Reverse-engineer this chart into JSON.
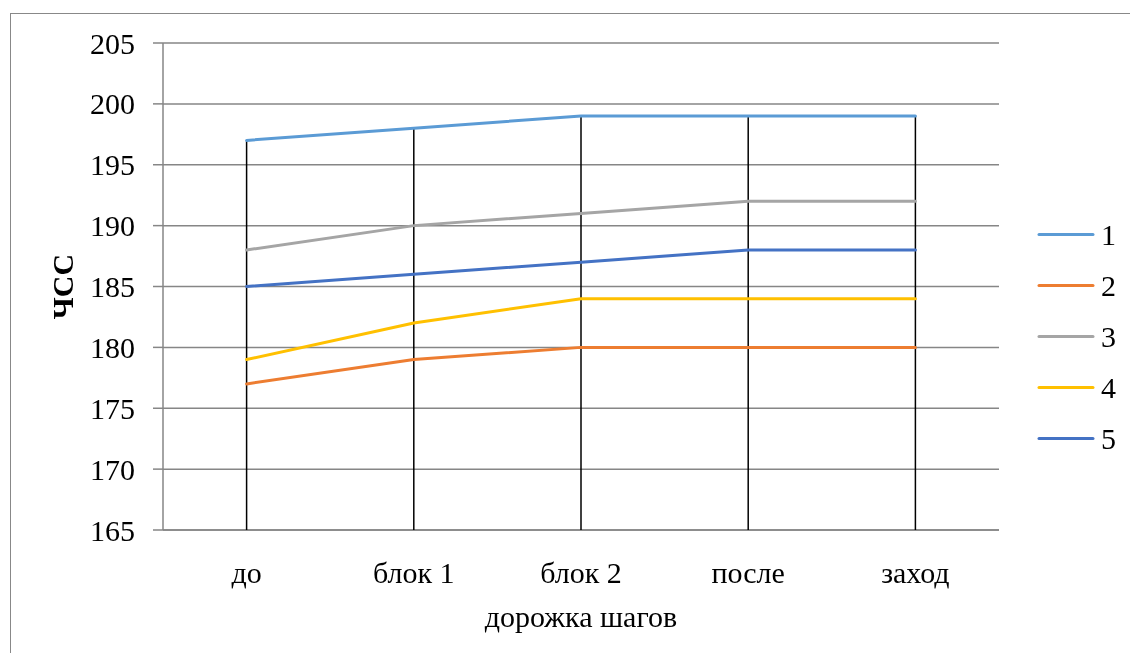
{
  "chart_data": {
    "type": "line",
    "xlabel": "дорожка шагов",
    "ylabel": "ЧСС",
    "categories": [
      "до",
      "блок 1",
      "блок 2",
      "после",
      "заход"
    ],
    "series": [
      {
        "name": "1",
        "color": "#5b9bd5",
        "values": [
          197,
          198,
          199,
          199,
          199
        ]
      },
      {
        "name": "2",
        "color": "#ed7d31",
        "values": [
          177,
          179,
          180,
          180,
          180
        ]
      },
      {
        "name": "3",
        "color": "#a5a5a5",
        "values": [
          188,
          190,
          191,
          192,
          192
        ]
      },
      {
        "name": "4",
        "color": "#ffc000",
        "values": [
          179,
          182,
          184,
          184,
          184
        ]
      },
      {
        "name": "5",
        "color": "#4472c4",
        "values": [
          185,
          186,
          187,
          188,
          188
        ]
      }
    ],
    "ylim": [
      165,
      205
    ],
    "yticks": [
      165,
      170,
      175,
      180,
      185,
      190,
      195,
      200,
      205
    ],
    "grid": true,
    "legend": "right",
    "marker": "none",
    "line_style": "solid"
  }
}
